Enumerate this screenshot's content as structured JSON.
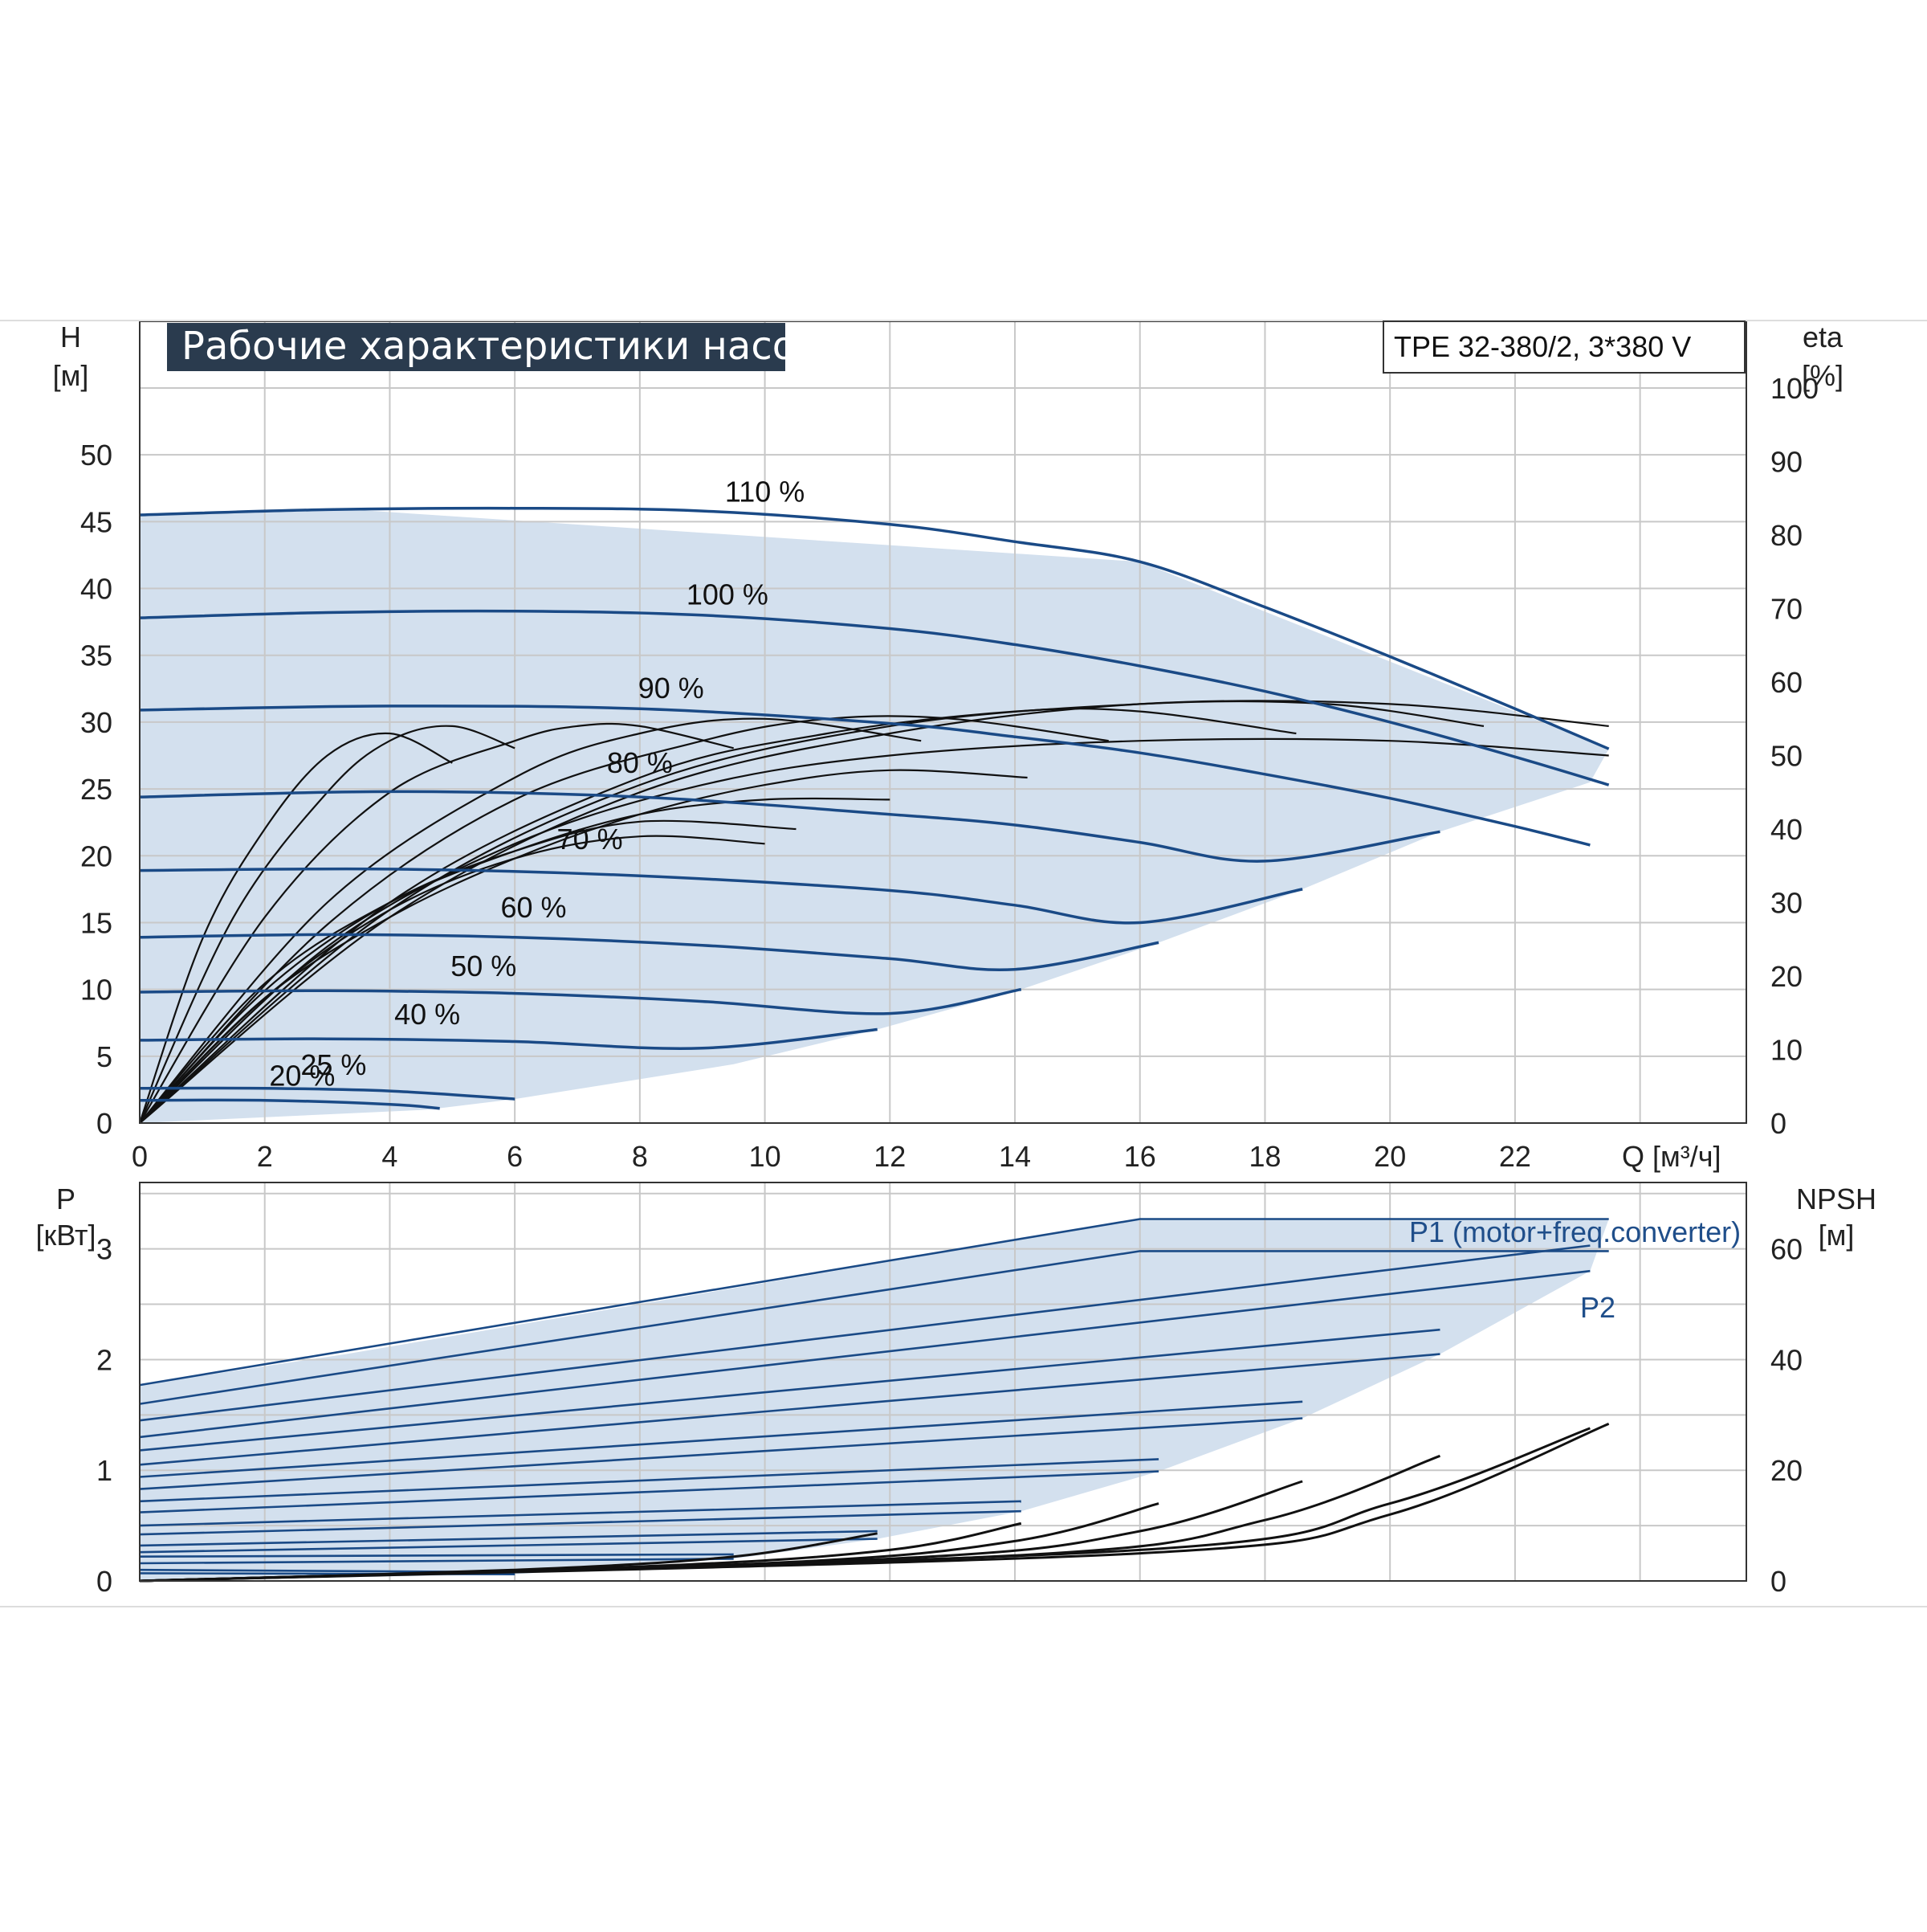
{
  "title": "Рабочие характеристики насоса",
  "model": "TPE 32-380/2, 3*380 V",
  "colors": {
    "curve_blue": "#1a4a86",
    "envelope_fill": "#d3e0ee",
    "low_flow_fill": "#ebf2f9",
    "grid": "#c8c8c8",
    "title_bg": "#2a3b4e",
    "efficiency_black": "#111111",
    "label_blue": "#1f4e8a"
  },
  "chart_data": [
    {
      "type": "line",
      "name": "head",
      "xlabel": "Q [м³/ч]",
      "ylabel_left": [
        "H",
        "[м]"
      ],
      "ylabel_right": [
        "eta",
        "[%]"
      ],
      "x_ticks": [
        "0",
        "2",
        "4",
        "6",
        "8",
        "10",
        "12",
        "14",
        "16",
        "18",
        "20",
        "22"
      ],
      "y_left_ticks": [
        "0",
        "5",
        "10",
        "15",
        "20",
        "25",
        "30",
        "35",
        "40",
        "45",
        "50"
      ],
      "y_right_ticks": [
        "0",
        "10",
        "20",
        "30",
        "40",
        "50",
        "60",
        "70",
        "80",
        "90",
        "100"
      ],
      "xlim": [
        0,
        25.7
      ],
      "ylim_left": [
        0,
        55
      ],
      "ylim_right": [
        0,
        100
      ],
      "grid": true,
      "series": [
        {
          "name": "110 %",
          "label_at": [
            10,
            46.5
          ],
          "x": [
            0,
            3,
            6,
            9,
            12,
            14,
            16,
            18,
            20,
            22,
            23.5
          ],
          "y": [
            45.5,
            45.9,
            46,
            45.8,
            44.8,
            43.5,
            42,
            38.6,
            34.9,
            31,
            28
          ]
        },
        {
          "name": "100 %",
          "label_at": [
            9.4,
            38.8
          ],
          "x": [
            0,
            3,
            6,
            9,
            12,
            14,
            16,
            18,
            20,
            22,
            23.5
          ],
          "y": [
            37.8,
            38.2,
            38.3,
            38,
            37,
            35.8,
            34.2,
            32.3,
            30,
            27.4,
            25.3
          ]
        },
        {
          "name": "90 %",
          "label_at": [
            8.5,
            31.8
          ],
          "x": [
            0,
            4,
            8,
            12,
            14,
            16,
            18,
            20,
            22,
            23.2
          ],
          "y": [
            30.9,
            31.2,
            31,
            29.9,
            28.9,
            27.7,
            26.1,
            24.3,
            22.2,
            20.8
          ]
        },
        {
          "name": "80 %",
          "label_at": [
            8,
            26.2
          ],
          "x": [
            0,
            4,
            8,
            12,
            14,
            16,
            18,
            20.8
          ],
          "y": [
            24.4,
            24.8,
            24.4,
            23.1,
            22.3,
            21,
            19.6,
            21.8
          ]
        },
        {
          "name": "70 %",
          "label_at": [
            7.2,
            20.5
          ],
          "x": [
            0,
            4,
            8,
            12,
            14,
            16,
            18.6
          ],
          "y": [
            18.9,
            19,
            18.5,
            17.4,
            16.3,
            15,
            17.5
          ]
        },
        {
          "name": "60 %",
          "label_at": [
            6.3,
            15.4
          ],
          "x": [
            0,
            3,
            6,
            9,
            12,
            14,
            16.3
          ],
          "y": [
            13.9,
            14.1,
            13.9,
            13.3,
            12.3,
            11.5,
            13.5
          ]
        },
        {
          "name": "50 %",
          "label_at": [
            5.5,
            11
          ],
          "x": [
            0,
            3,
            6,
            9,
            12,
            14.1
          ],
          "y": [
            9.8,
            9.9,
            9.7,
            9.1,
            8.2,
            10
          ]
        },
        {
          "name": "40 %",
          "label_at": [
            4.6,
            7.4
          ],
          "x": [
            0,
            3,
            6,
            9,
            11.8
          ],
          "y": [
            6.2,
            6.3,
            6.1,
            5.6,
            7
          ]
        },
        {
          "name": "25 %",
          "label_at": [
            3.1,
            3.6
          ],
          "x": [
            0,
            2,
            4,
            6
          ],
          "y": [
            2.6,
            2.6,
            2.4,
            1.8
          ]
        },
        {
          "name": "20 %",
          "label_at": [
            2.6,
            2.8
          ],
          "x": [
            0,
            2,
            4,
            4.8
          ],
          "y": [
            1.7,
            1.7,
            1.4,
            1.1
          ]
        }
      ],
      "efficiency_series": [
        {
          "x": [
            0,
            1,
            2,
            3,
            4,
            5
          ],
          "y": [
            0,
            25,
            40,
            50,
            53,
            49
          ]
        },
        {
          "x": [
            0,
            1.5,
            3,
            4,
            5,
            6
          ],
          "y": [
            0,
            28,
            45,
            52,
            54,
            51
          ]
        },
        {
          "x": [
            0,
            2,
            4,
            6,
            7,
            8,
            9.5
          ],
          "y": [
            0,
            28,
            45,
            52,
            54,
            54,
            51
          ]
        },
        {
          "x": [
            0,
            3,
            6,
            8,
            10,
            12.5
          ],
          "y": [
            0,
            30,
            47,
            53,
            55,
            52
          ]
        },
        {
          "x": [
            0,
            3,
            6,
            9,
            11,
            13,
            15.5
          ],
          "y": [
            0,
            27,
            44,
            52,
            55,
            55,
            52
          ]
        },
        {
          "x": [
            0,
            4,
            8,
            11,
            14,
            16,
            18.5
          ],
          "y": [
            0,
            30,
            47,
            53,
            56,
            56,
            53
          ]
        },
        {
          "x": [
            0,
            4,
            8,
            12,
            16,
            19,
            21.5
          ],
          "y": [
            0,
            29,
            46,
            54,
            57,
            57,
            54
          ]
        },
        {
          "x": [
            0,
            4,
            8,
            12,
            16,
            20,
            23.5
          ],
          "y": [
            0,
            28,
            45,
            53,
            57,
            57,
            54
          ]
        },
        {
          "x": [
            0,
            2,
            4,
            6,
            8,
            10,
            12
          ],
          "y": [
            0,
            19,
            30,
            37,
            42,
            44,
            44
          ]
        },
        {
          "x": [
            0,
            3,
            6,
            9,
            12,
            16,
            20,
            23.5
          ],
          "y": [
            0,
            24,
            38,
            46,
            50,
            52,
            52,
            50
          ]
        },
        {
          "x": [
            0,
            2,
            4,
            6,
            8,
            10.5
          ],
          "y": [
            0,
            18,
            30,
            37,
            41,
            40
          ]
        },
        {
          "x": [
            0,
            2,
            4,
            6,
            8,
            10
          ],
          "y": [
            0,
            17,
            29,
            36,
            39,
            38
          ]
        },
        {
          "x": [
            0,
            2,
            4,
            6,
            8,
            10,
            12,
            14.2
          ],
          "y": [
            0,
            17,
            28,
            36,
            42,
            46,
            48,
            47
          ]
        }
      ],
      "envelope": {
        "x": [
          0,
          3.4,
          16,
          23.5,
          23.2,
          20.8,
          18.6,
          16.3,
          14.1,
          11.8,
          9.5,
          6,
          4.6,
          0
        ],
        "y": [
          45.5,
          45.9,
          42,
          28,
          25.5,
          21.8,
          17.5,
          13.5,
          10,
          7,
          4.4,
          1.8,
          1,
          0
        ]
      },
      "low_flow_zone": {
        "x": [
          0,
          3.4,
          1.7,
          0
        ],
        "y": [
          45.5,
          45.5,
          10,
          0
        ]
      }
    },
    {
      "type": "line",
      "name": "power",
      "xlabel": "",
      "ylabel_left": [
        "P",
        "[кВт]"
      ],
      "ylabel_right": [
        "NPSH",
        "[м]"
      ],
      "y_left_ticks": [
        "0",
        "1",
        "2",
        "3"
      ],
      "y_right_ticks": [
        "0",
        "20",
        "40",
        "60"
      ],
      "xlim": [
        0,
        25.7
      ],
      "ylim_left": [
        0,
        3.6
      ],
      "ylim_right": [
        0,
        72
      ],
      "labels": {
        "p1": "P1 (motor+freq.converter)",
        "p2": "P2"
      },
      "power_series": [
        {
          "x": [
            0,
            16,
            23.5
          ],
          "y": [
            1.77,
            3.27,
            3.27
          ]
        },
        {
          "x": [
            0,
            16,
            23.5
          ],
          "y": [
            1.6,
            2.98,
            2.98
          ]
        },
        {
          "x": [
            0,
            23.2
          ],
          "y": [
            1.45,
            3.03
          ]
        },
        {
          "x": [
            0,
            23.2
          ],
          "y": [
            1.3,
            2.8
          ]
        },
        {
          "x": [
            0,
            20.8
          ],
          "y": [
            1.18,
            2.27
          ]
        },
        {
          "x": [
            0,
            20.8
          ],
          "y": [
            1.05,
            2.05
          ]
        },
        {
          "x": [
            0,
            18.6
          ],
          "y": [
            0.94,
            1.62
          ]
        },
        {
          "x": [
            0,
            18.6
          ],
          "y": [
            0.83,
            1.47
          ]
        },
        {
          "x": [
            0,
            16.3
          ],
          "y": [
            0.72,
            1.1
          ]
        },
        {
          "x": [
            0,
            16.3
          ],
          "y": [
            0.62,
            0.99
          ]
        },
        {
          "x": [
            0,
            14.1
          ],
          "y": [
            0.5,
            0.72
          ]
        },
        {
          "x": [
            0,
            14.1
          ],
          "y": [
            0.42,
            0.63
          ]
        },
        {
          "x": [
            0,
            11.8
          ],
          "y": [
            0.32,
            0.45
          ]
        },
        {
          "x": [
            0,
            11.8
          ],
          "y": [
            0.26,
            0.38
          ]
        },
        {
          "x": [
            0,
            9.5
          ],
          "y": [
            0.22,
            0.24
          ]
        },
        {
          "x": [
            0,
            9.5
          ],
          "y": [
            0.16,
            0.2
          ]
        },
        {
          "x": [
            0,
            6
          ],
          "y": [
            0.1,
            0.08
          ]
        },
        {
          "x": [
            0,
            6
          ],
          "y": [
            0.07,
            0.06
          ]
        }
      ],
      "power_envelope": {
        "x": [
          0,
          3.3,
          16,
          23.5,
          23.2,
          20.8,
          18.6,
          16.3,
          14.1,
          11.8,
          9.5,
          6,
          0
        ],
        "y": [
          1.77,
          2.05,
          3.27,
          3.27,
          2.8,
          2.05,
          1.47,
          0.99,
          0.63,
          0.38,
          0.2,
          0.06,
          0
        ]
      },
      "npsh_series": [
        {
          "x": [
            0,
            6,
            9.5,
            11.8
          ],
          "y": [
            0,
            0.1,
            0.22,
            0.43
          ]
        },
        {
          "x": [
            0,
            8,
            12,
            14.1
          ],
          "y": [
            0,
            0.13,
            0.28,
            0.52
          ]
        },
        {
          "x": [
            0,
            10,
            14,
            16.3
          ],
          "y": [
            0,
            0.16,
            0.36,
            0.7
          ]
        },
        {
          "x": [
            0,
            12,
            16,
            18.6
          ],
          "y": [
            0,
            0.2,
            0.45,
            0.9
          ]
        },
        {
          "x": [
            0,
            14,
            18,
            20.8
          ],
          "y": [
            0,
            0.23,
            0.55,
            1.13
          ]
        },
        {
          "x": [
            0,
            16,
            20,
            23.2
          ],
          "y": [
            0,
            0.28,
            0.7,
            1.38
          ]
        },
        {
          "x": [
            0,
            16,
            20,
            23.5
          ],
          "y": [
            0,
            0.25,
            0.6,
            1.42
          ]
        }
      ]
    }
  ]
}
